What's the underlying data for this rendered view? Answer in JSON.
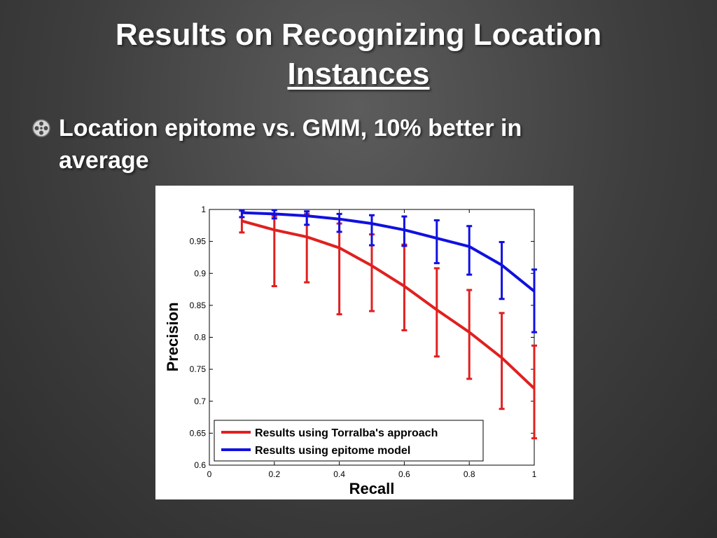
{
  "slide": {
    "title_line1": "Results on Recognizing Location",
    "title_line2": "Instances",
    "bullet_icon": "film-reel-icon",
    "bullet_line1": "Location epitome vs. GMM, 10% better in",
    "bullet_line2": "average"
  },
  "chart_data": {
    "type": "line",
    "xlabel": "Recall",
    "ylabel": "Precision",
    "xlim": [
      0,
      1
    ],
    "ylim": [
      0.6,
      1
    ],
    "xticks": [
      "0",
      "0.2",
      "0.4",
      "0.6",
      "0.8",
      "1"
    ],
    "yticks": [
      "0.6",
      "0.65",
      "0.7",
      "0.75",
      "0.8",
      "0.85",
      "0.9",
      "0.95",
      "1"
    ],
    "grid": false,
    "legend_position": "bottom-left",
    "x": [
      0.1,
      0.2,
      0.3,
      0.4,
      0.5,
      0.6,
      0.7,
      0.8,
      0.9,
      1.0
    ],
    "series": [
      {
        "name": "Results using Torralba's approach",
        "color": "#e02020",
        "values": [
          0.982,
          0.968,
          0.957,
          0.94,
          0.912,
          0.88,
          0.843,
          0.808,
          0.768,
          0.72
        ],
        "err_low": [
          0.964,
          0.88,
          0.886,
          0.836,
          0.841,
          0.811,
          0.77,
          0.735,
          0.688,
          0.642
        ],
        "err_high": [
          0.998,
          0.99,
          0.993,
          0.978,
          0.961,
          0.945,
          0.908,
          0.874,
          0.838,
          0.787
        ]
      },
      {
        "name": "Results using epitome model",
        "color": "#1010e0",
        "values": [
          0.995,
          0.993,
          0.99,
          0.985,
          0.978,
          0.968,
          0.955,
          0.942,
          0.913,
          0.872
        ],
        "err_low": [
          0.988,
          0.986,
          0.976,
          0.965,
          0.944,
          0.943,
          0.916,
          0.898,
          0.86,
          0.808
        ],
        "err_high": [
          0.999,
          0.999,
          0.997,
          0.993,
          0.991,
          0.989,
          0.983,
          0.974,
          0.949,
          0.906
        ]
      }
    ]
  }
}
